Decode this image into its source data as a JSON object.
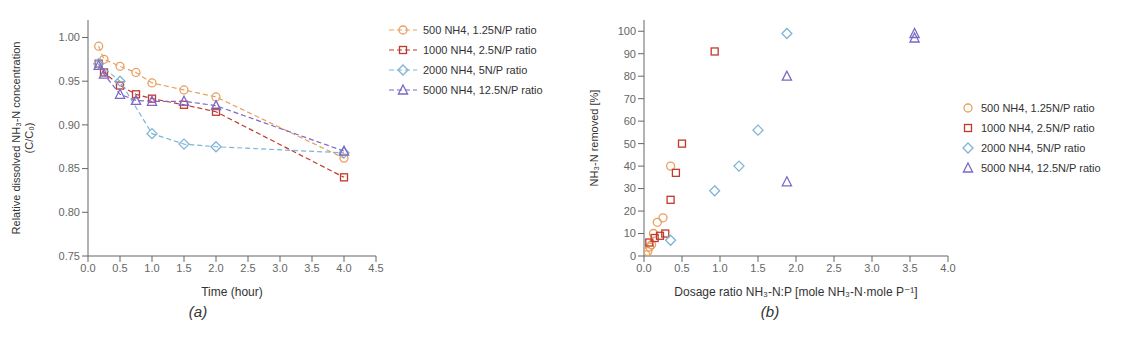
{
  "chart_data": [
    {
      "type": "line",
      "xlabel": "Time (hour)",
      "ylabel": "Relative dissolved NH₃-N concentration\n(C/C₀)",
      "annotations": [
        "(a)"
      ],
      "xlim": [
        0,
        4.5
      ],
      "ylim": [
        0.75,
        1.02
      ],
      "xticks": [
        {
          "value": 0,
          "label": "0.0"
        },
        0.5,
        {
          "value": 1.0,
          "label": "1.0"
        },
        1.5,
        {
          "value": 2.0,
          "label": "2.0"
        },
        2.5,
        {
          "value": 3.0,
          "label": "3.0"
        },
        3.5,
        {
          "value": 4.0,
          "label": "4.0"
        },
        4.5
      ],
      "yticks": [
        0.75,
        {
          "value": 0.8,
          "label": "0.80"
        },
        0.85,
        {
          "value": 0.9,
          "label": "0.90"
        },
        0.95,
        {
          "value": 1.0,
          "label": "1.00"
        }
      ],
      "grid": false,
      "legend": "upper right",
      "series": [
        {
          "name": "500 NH4, 1.25N/P ratio",
          "color": "#E8A060",
          "marker": "circle",
          "line_style": "dashed",
          "x": [
            0.167,
            0.25,
            0.5,
            0.75,
            1.0,
            1.5,
            2.0,
            4.0
          ],
          "values": [
            0.99,
            0.975,
            0.967,
            0.96,
            0.948,
            0.94,
            0.932,
            0.862
          ]
        },
        {
          "name": "1000 NH4, 2.5N/P ratio",
          "color": "#C0392B",
          "marker": "square",
          "line_style": "dashed",
          "x": [
            0.167,
            0.25,
            0.5,
            0.75,
            1.0,
            1.5,
            2.0,
            4.0
          ],
          "values": [
            0.97,
            0.96,
            0.945,
            0.935,
            0.93,
            0.923,
            0.915,
            0.84
          ]
        },
        {
          "name": "2000 NH4, 5N/P ratio",
          "color": "#7EB4D4",
          "marker": "diamond",
          "line_style": "dashed",
          "x": [
            0.167,
            0.5,
            1.0,
            1.5,
            2.0,
            4.0
          ],
          "values": [
            0.97,
            0.95,
            0.89,
            0.878,
            0.875,
            0.868
          ]
        },
        {
          "name": "5000 NH4, 12.5N/P ratio",
          "color": "#7B68C8",
          "marker": "triangle-up",
          "line_style": "dashed",
          "x": [
            0.167,
            0.25,
            0.5,
            0.75,
            1.0,
            1.5,
            2.0,
            4.0
          ],
          "values": [
            0.968,
            0.958,
            0.935,
            0.928,
            0.927,
            0.927,
            0.922,
            0.87
          ]
        }
      ]
    },
    {
      "type": "scatter",
      "xlabel": "Dosage ratio NH₃-N:P [mole NH₃-N·mole P⁻¹]",
      "ylabel": "NH₃-N removed [%]",
      "annotations": [
        "(b)"
      ],
      "xlim": [
        0,
        4.0
      ],
      "ylim": [
        0,
        105
      ],
      "xticks": [
        {
          "value": 0,
          "label": "0.0"
        },
        0.5,
        {
          "value": 1.0,
          "label": "1.0"
        },
        1.5,
        {
          "value": 2.0,
          "label": "2.0"
        },
        2.5,
        {
          "value": 3.0,
          "label": "3.0"
        },
        3.5,
        {
          "value": 4.0,
          "label": "4.0"
        }
      ],
      "yticks": [
        0,
        10,
        20,
        30,
        40,
        50,
        60,
        70,
        80,
        90,
        100
      ],
      "grid": false,
      "legend": "center right",
      "series": [
        {
          "name": "500 NH4, 1.25N/P ratio",
          "color": "#E8A060",
          "marker": "circle",
          "x": [
            0.025,
            0.05,
            0.075,
            0.1,
            0.125,
            0.175,
            0.25,
            0.35
          ],
          "values": [
            0.5,
            2.0,
            4.0,
            5.0,
            10.0,
            15.0,
            17.0,
            40.0
          ]
        },
        {
          "name": "1000 NH4, 2.5N/P ratio",
          "color": "#C0392B",
          "marker": "square",
          "x": [
            0.07,
            0.14,
            0.21,
            0.28,
            0.35,
            0.42,
            0.5,
            0.93
          ],
          "values": [
            6.0,
            8.0,
            9.0,
            10.0,
            25.0,
            37.0,
            50.0,
            91.0
          ]
        },
        {
          "name": "2000 NH4, 5N/P ratio",
          "color": "#7EB4D4",
          "marker": "diamond",
          "x": [
            0.35,
            0.93,
            1.25,
            1.5,
            1.88
          ],
          "values": [
            7.0,
            29.0,
            40.0,
            56.0,
            99.0
          ]
        },
        {
          "name": "5000 NH4, 12.5N/P ratio",
          "color": "#7B68C8",
          "marker": "triangle-up",
          "x": [
            1.88,
            1.88,
            3.56,
            3.56
          ],
          "values": [
            33.0,
            80.0,
            97.0,
            99.0
          ]
        }
      ]
    }
  ]
}
